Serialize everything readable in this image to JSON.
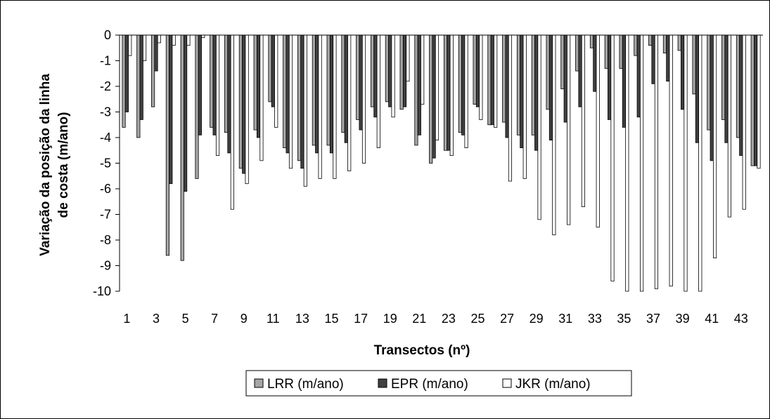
{
  "chart_data": {
    "type": "bar",
    "xlabel": "Transectos (nº)",
    "ylabel": "Variação da posição da linha de costa (m/ano)",
    "ylim": [
      -10,
      0
    ],
    "yticks": [
      "0",
      "-1",
      "-2",
      "-3",
      "-4",
      "-5",
      "-6",
      "-7",
      "-8",
      "-9",
      "-10"
    ],
    "categories": [
      "1",
      "2",
      "3",
      "4",
      "5",
      "6",
      "7",
      "8",
      "9",
      "10",
      "11",
      "12",
      "13",
      "14",
      "15",
      "16",
      "17",
      "18",
      "19",
      "20",
      "21",
      "22",
      "23",
      "24",
      "25",
      "26",
      "27",
      "28",
      "29",
      "30",
      "31",
      "32",
      "33",
      "34",
      "35",
      "36",
      "37",
      "38",
      "39",
      "40",
      "41",
      "42",
      "43",
      "44"
    ],
    "xtick_labels": [
      "1",
      "3",
      "5",
      "7",
      "9",
      "11",
      "13",
      "15",
      "17",
      "19",
      "21",
      "23",
      "25",
      "27",
      "29",
      "31",
      "33",
      "35",
      "37",
      "39",
      "41",
      "43"
    ],
    "grid": false,
    "legend_position": "bottom",
    "series": [
      {
        "name": "LRR (m/ano)",
        "color": "#a6a6a6",
        "values": [
          -3.6,
          -4.0,
          -2.8,
          -8.6,
          -8.8,
          -5.6,
          -3.6,
          -3.8,
          -5.2,
          -3.7,
          -2.6,
          -4.4,
          -4.9,
          -4.3,
          -4.3,
          -3.8,
          -3.3,
          -2.8,
          -2.6,
          -2.9,
          -4.3,
          -5.0,
          -4.5,
          -3.8,
          -2.7,
          -3.5,
          -3.4,
          -3.9,
          -3.9,
          -2.9,
          -2.1,
          -1.4,
          -0.5,
          -1.3,
          -1.3,
          -0.8,
          -0.4,
          -0.7,
          -0.6,
          -2.3,
          -3.7,
          -3.3,
          -4.0,
          -5.1
        ]
      },
      {
        "name": "EPR (m/ano)",
        "color": "#404040",
        "values": [
          -3.0,
          -3.3,
          -1.4,
          -5.8,
          -6.1,
          -3.9,
          -3.9,
          -4.6,
          -5.4,
          -4.0,
          -2.8,
          -4.6,
          -5.2,
          -4.6,
          -4.6,
          -4.2,
          -3.7,
          -3.2,
          -2.8,
          -2.8,
          -3.9,
          -4.8,
          -4.5,
          -3.9,
          -2.8,
          -3.5,
          -4.0,
          -4.4,
          -4.5,
          -4.1,
          -3.4,
          -2.8,
          -2.2,
          -3.3,
          -3.6,
          -3.2,
          -1.9,
          -1.8,
          -2.9,
          -4.2,
          -4.9,
          -4.2,
          -4.7,
          -5.1
        ]
      },
      {
        "name": "JKR (m/ano)",
        "color": "#ffffff",
        "values": [
          -0.8,
          -1.0,
          -0.3,
          -0.4,
          -0.4,
          -0.1,
          -4.7,
          -6.8,
          -5.8,
          -4.9,
          -3.6,
          -5.2,
          -5.9,
          -5.6,
          -5.6,
          -5.3,
          -5.0,
          -4.4,
          -3.2,
          -1.8,
          -2.7,
          -4.1,
          -4.7,
          -4.4,
          -3.3,
          -3.6,
          -5.7,
          -5.6,
          -7.2,
          -7.8,
          -7.4,
          -6.7,
          -7.5,
          -9.6,
          -10.0,
          -10.0,
          -9.9,
          -9.8,
          -10.0,
          -10.0,
          -8.7,
          -7.1,
          -6.8,
          -5.2
        ]
      }
    ]
  }
}
